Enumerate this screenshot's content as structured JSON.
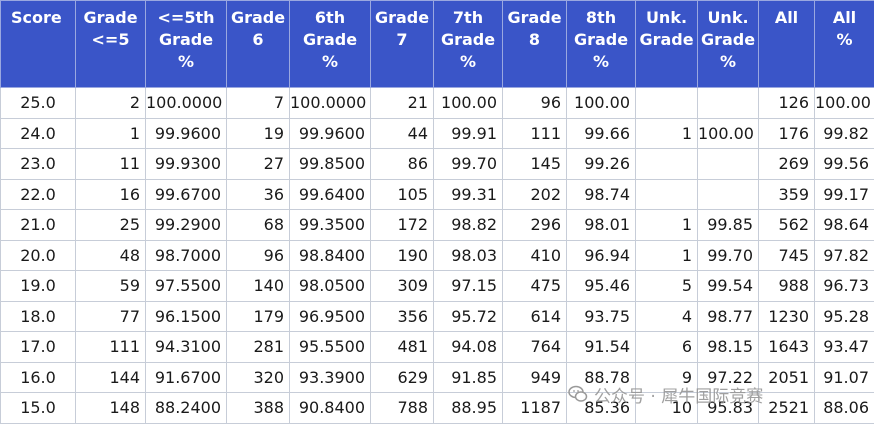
{
  "table": {
    "headers": [
      [
        "Score"
      ],
      [
        "Grade",
        "<=5"
      ],
      [
        "<=5th",
        "Grade",
        "%"
      ],
      [
        "Grade",
        "6"
      ],
      [
        "6th",
        "Grade",
        "%"
      ],
      [
        "Grade",
        "7"
      ],
      [
        "7th",
        "Grade",
        "%"
      ],
      [
        "Grade",
        "8"
      ],
      [
        "8th",
        "Grade",
        "%"
      ],
      [
        "Unk.",
        "Grade"
      ],
      [
        "Unk.",
        "Grade",
        "%"
      ],
      [
        "All"
      ],
      [
        "All",
        "%"
      ]
    ],
    "rows": [
      [
        "25.0",
        "2",
        "100.0000",
        "7",
        "100.0000",
        "21",
        "100.00",
        "96",
        "100.00",
        "",
        "",
        "126",
        "100.00"
      ],
      [
        "24.0",
        "1",
        "99.9600",
        "19",
        "99.9600",
        "44",
        "99.91",
        "111",
        "99.66",
        "1",
        "100.00",
        "176",
        "99.82"
      ],
      [
        "23.0",
        "11",
        "99.9300",
        "27",
        "99.8500",
        "86",
        "99.70",
        "145",
        "99.26",
        "",
        "",
        "269",
        "99.56"
      ],
      [
        "22.0",
        "16",
        "99.6700",
        "36",
        "99.6400",
        "105",
        "99.31",
        "202",
        "98.74",
        "",
        "",
        "359",
        "99.17"
      ],
      [
        "21.0",
        "25",
        "99.2900",
        "68",
        "99.3500",
        "172",
        "98.82",
        "296",
        "98.01",
        "1",
        "99.85",
        "562",
        "98.64"
      ],
      [
        "20.0",
        "48",
        "98.7000",
        "96",
        "98.8400",
        "190",
        "98.03",
        "410",
        "96.94",
        "1",
        "99.70",
        "745",
        "97.82"
      ],
      [
        "19.0",
        "59",
        "97.5500",
        "140",
        "98.0500",
        "309",
        "97.15",
        "475",
        "95.46",
        "5",
        "99.54",
        "988",
        "96.73"
      ],
      [
        "18.0",
        "77",
        "96.1500",
        "179",
        "96.9500",
        "356",
        "95.72",
        "614",
        "93.75",
        "4",
        "98.77",
        "1230",
        "95.28"
      ],
      [
        "17.0",
        "111",
        "94.3100",
        "281",
        "95.5500",
        "481",
        "94.08",
        "764",
        "91.54",
        "6",
        "98.15",
        "1643",
        "93.47"
      ],
      [
        "16.0",
        "144",
        "91.6700",
        "320",
        "93.3900",
        "629",
        "91.85",
        "949",
        "88.78",
        "9",
        "97.22",
        "2051",
        "91.07"
      ],
      [
        "15.0",
        "148",
        "88.2400",
        "388",
        "90.8400",
        "788",
        "88.95",
        "1187",
        "85.36",
        "10",
        "95.83",
        "2521",
        "88.06"
      ]
    ]
  },
  "watermark": {
    "text": "公众号 · 犀牛国际竞赛",
    "icon": "wechat-icon"
  }
}
